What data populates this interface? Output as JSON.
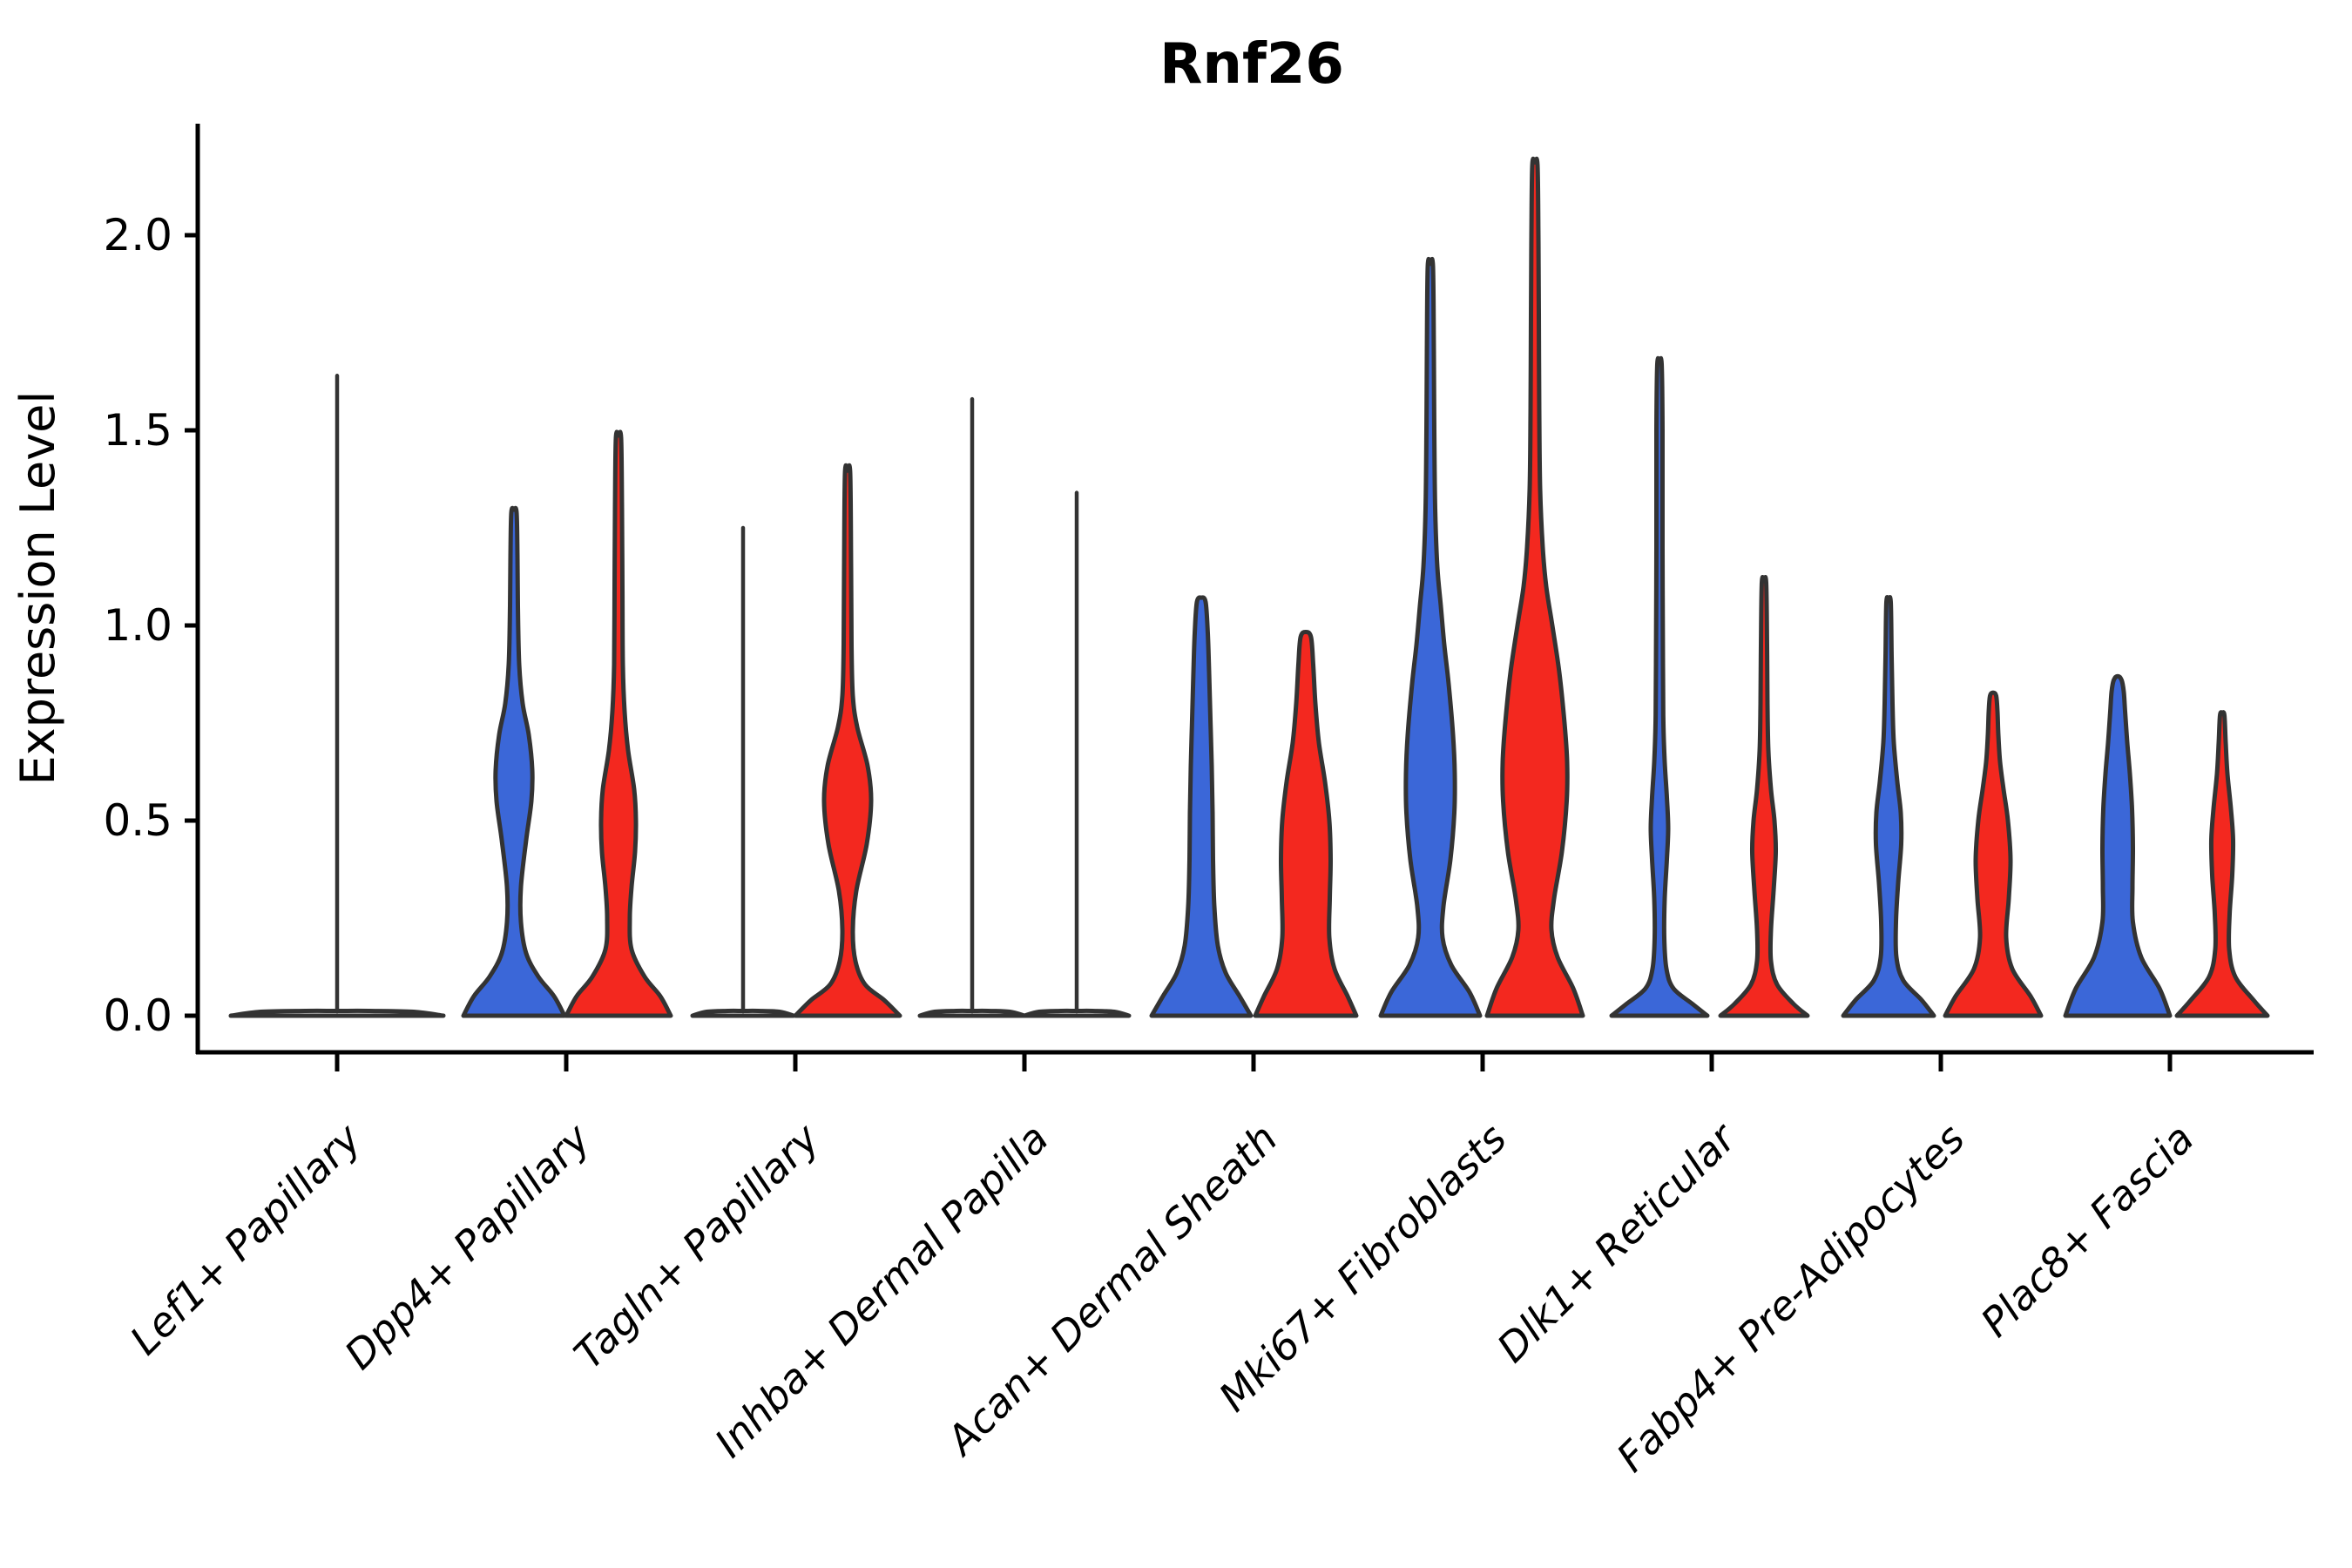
{
  "colors": {
    "blue": "#3B67D8",
    "red": "#F3281F",
    "outline": "#333333",
    "axis": "#000000",
    "background": "#FFFFFF"
  },
  "chart_data": {
    "type": "violin",
    "title": "Rnf26",
    "xlabel": "",
    "ylabel": "Expression Level",
    "ylim": [
      -0.06,
      2.32
    ],
    "y_ticks": [
      0.0,
      0.5,
      1.0,
      1.5,
      2.0
    ],
    "y_tick_labels": [
      "0.0",
      "0.5",
      "1.0",
      "1.5",
      "2.0"
    ],
    "grid": false,
    "legend": "none (each cell type shows two unlabeled split violins: blue condition and red condition)",
    "categories": [
      "Lef1+ Papillary",
      "Dpp4+ Papillary",
      "Tagln+ Papillary",
      "Inhba+ Dermal Papilla",
      "Acan+ Dermal Sheath",
      "Mki67+ Fibroblasts",
      "Dlk1+ Reticular",
      "Fabp4+ Pre-Adipocytes",
      "Plac8+ Fascia"
    ],
    "groups": [
      {
        "label": "Lef1+ Papillary",
        "violins": [
          {
            "hue": "single",
            "fill": "white",
            "offset": 0,
            "kind": "flat_spike",
            "flat_halfwidth": 122,
            "max": 1.64
          }
        ]
      },
      {
        "label": "Dpp4+ Papillary",
        "violins": [
          {
            "hue": "blue",
            "fill": "blue",
            "offset": -60,
            "kind": "density",
            "max": 1.29,
            "profile": [
              [
                0,
                58
              ],
              [
                0.05,
                46
              ],
              [
                0.1,
                28
              ],
              [
                0.16,
                14
              ],
              [
                0.24,
                8
              ],
              [
                0.33,
                8
              ],
              [
                0.45,
                14
              ],
              [
                0.55,
                20
              ],
              [
                0.63,
                21
              ],
              [
                0.72,
                17
              ],
              [
                0.8,
                10
              ],
              [
                0.9,
                6
              ],
              [
                1.05,
                4.5
              ],
              [
                1.18,
                4
              ],
              [
                1.29,
                3
              ]
            ]
          },
          {
            "hue": "red",
            "fill": "red",
            "offset": 60,
            "kind": "density",
            "max": 1.48,
            "profile": [
              [
                0,
                60
              ],
              [
                0.05,
                48
              ],
              [
                0.1,
                30
              ],
              [
                0.17,
                15
              ],
              [
                0.25,
                13
              ],
              [
                0.33,
                15
              ],
              [
                0.42,
                19
              ],
              [
                0.5,
                20
              ],
              [
                0.58,
                18
              ],
              [
                0.68,
                11
              ],
              [
                0.78,
                7
              ],
              [
                0.9,
                5
              ],
              [
                1.1,
                4.5
              ],
              [
                1.3,
                4
              ],
              [
                1.48,
                3
              ]
            ]
          }
        ]
      },
      {
        "label": "Tagln+ Papillary",
        "violins": [
          {
            "hue": "blue",
            "fill": "white",
            "offset": -60,
            "kind": "flat_spike",
            "flat_halfwidth": 58,
            "max": 1.25
          },
          {
            "hue": "red",
            "fill": "red",
            "offset": 60,
            "kind": "density",
            "max": 1.39,
            "profile": [
              [
                0,
                60
              ],
              [
                0.04,
                42
              ],
              [
                0.08,
                20
              ],
              [
                0.14,
                9
              ],
              [
                0.22,
                6
              ],
              [
                0.32,
                10
              ],
              [
                0.44,
                22
              ],
              [
                0.55,
                27
              ],
              [
                0.64,
                23
              ],
              [
                0.74,
                11
              ],
              [
                0.82,
                6
              ],
              [
                0.95,
                4.5
              ],
              [
                1.15,
                4
              ],
              [
                1.39,
                3
              ]
            ]
          }
        ]
      },
      {
        "label": "Inhba+ Dermal Papilla",
        "violins": [
          {
            "hue": "blue",
            "fill": "white",
            "offset": -60,
            "kind": "flat_spike",
            "flat_halfwidth": 60,
            "max": 1.58
          },
          {
            "hue": "red",
            "fill": "white",
            "offset": 60,
            "kind": "flat_spike",
            "flat_halfwidth": 60,
            "max": 1.34
          }
        ]
      },
      {
        "label": "Acan+ Dermal Sheath",
        "violins": [
          {
            "hue": "blue",
            "fill": "blue",
            "offset": -60,
            "kind": "density",
            "max": 1.06,
            "profile": [
              [
                0,
                57
              ],
              [
                0.05,
                44
              ],
              [
                0.11,
                28
              ],
              [
                0.18,
                19
              ],
              [
                0.28,
                15
              ],
              [
                0.4,
                13.5
              ],
              [
                0.52,
                13
              ],
              [
                0.64,
                12
              ],
              [
                0.76,
                10.5
              ],
              [
                0.88,
                9
              ],
              [
                0.98,
                7.5
              ],
              [
                1.06,
                5
              ]
            ]
          },
          {
            "hue": "red",
            "fill": "red",
            "offset": 60,
            "kind": "density",
            "max": 0.97,
            "profile": [
              [
                0,
                58
              ],
              [
                0.05,
                48
              ],
              [
                0.12,
                33
              ],
              [
                0.2,
                27
              ],
              [
                0.3,
                27.5
              ],
              [
                0.4,
                28.5
              ],
              [
                0.5,
                27
              ],
              [
                0.6,
                22
              ],
              [
                0.7,
                15
              ],
              [
                0.8,
                11
              ],
              [
                0.9,
                8.5
              ],
              [
                0.97,
                6
              ]
            ]
          }
        ]
      },
      {
        "label": "Mki67+ Fibroblasts",
        "violins": [
          {
            "hue": "blue",
            "fill": "blue",
            "offset": -60,
            "kind": "density",
            "max": 1.92,
            "profile": [
              [
                0,
                57
              ],
              [
                0.06,
                45
              ],
              [
                0.13,
                24
              ],
              [
                0.2,
                14
              ],
              [
                0.28,
                15
              ],
              [
                0.4,
                23
              ],
              [
                0.52,
                27.5
              ],
              [
                0.62,
                28
              ],
              [
                0.72,
                26
              ],
              [
                0.85,
                21
              ],
              [
                0.95,
                16
              ],
              [
                1.05,
                12
              ],
              [
                1.15,
                8
              ],
              [
                1.3,
                5.5
              ],
              [
                1.5,
                4.5
              ],
              [
                1.7,
                4
              ],
              [
                1.92,
                3
              ]
            ]
          },
          {
            "hue": "red",
            "fill": "red",
            "offset": 60,
            "kind": "density",
            "max": 2.18,
            "profile": [
              [
                0,
                55
              ],
              [
                0.07,
                44
              ],
              [
                0.15,
                26
              ],
              [
                0.22,
                19
              ],
              [
                0.3,
                22
              ],
              [
                0.42,
                31
              ],
              [
                0.55,
                36.5
              ],
              [
                0.65,
                37
              ],
              [
                0.75,
                34
              ],
              [
                0.88,
                28
              ],
              [
                1.0,
                20
              ],
              [
                1.1,
                13
              ],
              [
                1.2,
                9
              ],
              [
                1.35,
                6
              ],
              [
                1.55,
                5
              ],
              [
                1.8,
                4.5
              ],
              [
                2.0,
                4
              ],
              [
                2.18,
                3
              ]
            ]
          }
        ]
      },
      {
        "label": "Dlk1+ Reticular",
        "violins": [
          {
            "hue": "blue",
            "fill": "blue",
            "offset": -60,
            "kind": "density",
            "max": 1.67,
            "profile": [
              [
                0,
                55
              ],
              [
                0.03,
                38
              ],
              [
                0.07,
                16
              ],
              [
                0.12,
                8
              ],
              [
                0.2,
                5.5
              ],
              [
                0.3,
                6
              ],
              [
                0.4,
                8.5
              ],
              [
                0.48,
                10
              ],
              [
                0.56,
                8.5
              ],
              [
                0.65,
                6
              ],
              [
                0.75,
                4.5
              ],
              [
                0.9,
                4
              ],
              [
                1.2,
                3.5
              ],
              [
                1.5,
                3.5
              ],
              [
                1.67,
                2.5
              ]
            ]
          },
          {
            "hue": "red",
            "fill": "red",
            "offset": 60,
            "kind": "density",
            "max": 1.11,
            "profile": [
              [
                0,
                50
              ],
              [
                0.03,
                34
              ],
              [
                0.08,
                15
              ],
              [
                0.14,
                8
              ],
              [
                0.22,
                8
              ],
              [
                0.32,
                11
              ],
              [
                0.42,
                13.5
              ],
              [
                0.5,
                12
              ],
              [
                0.58,
                8
              ],
              [
                0.68,
                5
              ],
              [
                0.8,
                4
              ],
              [
                0.95,
                3.5
              ],
              [
                1.11,
                2.5
              ]
            ]
          }
        ]
      },
      {
        "label": "Fabp4+ Pre-Adipocytes",
        "violins": [
          {
            "hue": "blue",
            "fill": "blue",
            "offset": -60,
            "kind": "density",
            "max": 1.06,
            "profile": [
              [
                0,
                52
              ],
              [
                0.04,
                38
              ],
              [
                0.09,
                17
              ],
              [
                0.15,
                9
              ],
              [
                0.24,
                8.5
              ],
              [
                0.34,
                11
              ],
              [
                0.44,
                14.5
              ],
              [
                0.52,
                14
              ],
              [
                0.6,
                10
              ],
              [
                0.7,
                6
              ],
              [
                0.8,
                4.5
              ],
              [
                0.92,
                3.5
              ],
              [
                1.06,
                2.5
              ]
            ]
          },
          {
            "hue": "red",
            "fill": "red",
            "offset": 60,
            "kind": "density",
            "max": 0.82,
            "profile": [
              [
                0,
                55
              ],
              [
                0.05,
                43
              ],
              [
                0.12,
                22
              ],
              [
                0.2,
                15
              ],
              [
                0.3,
                18
              ],
              [
                0.4,
                20
              ],
              [
                0.5,
                17
              ],
              [
                0.58,
                12
              ],
              [
                0.65,
                8
              ],
              [
                0.72,
                6
              ],
              [
                0.78,
                5
              ],
              [
                0.82,
                3.5
              ]
            ]
          }
        ]
      },
      {
        "label": "Plac8+ Fascia",
        "violins": [
          {
            "hue": "blue",
            "fill": "blue",
            "offset": -60,
            "kind": "density",
            "max": 0.86,
            "profile": [
              [
                0,
                60
              ],
              [
                0.07,
                48
              ],
              [
                0.15,
                27
              ],
              [
                0.24,
                17.5
              ],
              [
                0.33,
                17
              ],
              [
                0.43,
                17.5
              ],
              [
                0.53,
                16.5
              ],
              [
                0.62,
                14
              ],
              [
                0.7,
                11
              ],
              [
                0.78,
                8.5
              ],
              [
                0.83,
                7
              ],
              [
                0.86,
                4.5
              ]
            ]
          },
          {
            "hue": "red",
            "fill": "red",
            "offset": 60,
            "kind": "density",
            "max": 0.77,
            "profile": [
              [
                0,
                52
              ],
              [
                0.04,
                36
              ],
              [
                0.1,
                15
              ],
              [
                0.17,
                8
              ],
              [
                0.26,
                8.5
              ],
              [
                0.36,
                11.5
              ],
              [
                0.45,
                12.5
              ],
              [
                0.53,
                10
              ],
              [
                0.62,
                6
              ],
              [
                0.7,
                4
              ],
              [
                0.77,
                2.5
              ]
            ]
          }
        ]
      }
    ]
  }
}
